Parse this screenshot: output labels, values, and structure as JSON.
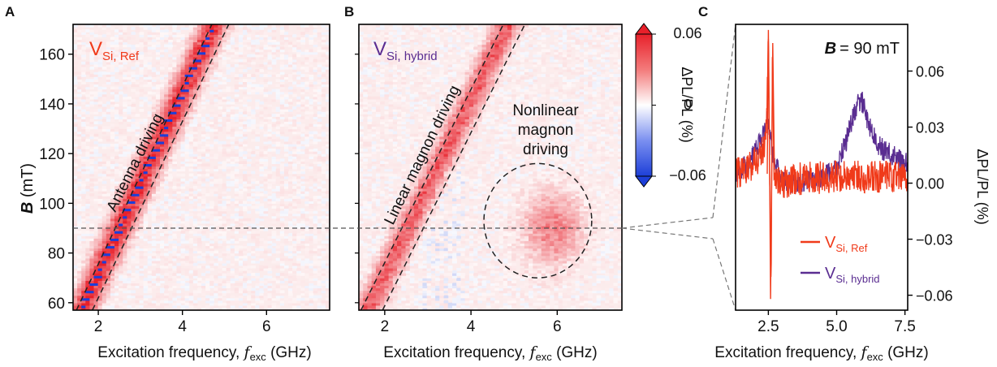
{
  "panels": {
    "A": {
      "letter": "A",
      "label_base": "V",
      "label_sub": "Si, Ref",
      "annotation": "Antenna driving"
    },
    "B": {
      "letter": "B",
      "label_base": "V",
      "label_sub": "Si, hybrid",
      "annotation_linear": "Linear magnon driving",
      "annotation_nonlinear": [
        "Nonlinear",
        "magnon",
        "driving"
      ]
    },
    "C": {
      "letter": "C",
      "field_symbol": "B",
      "field_value": "= 90 mT"
    }
  },
  "axes": {
    "x_label_prefix": "Excitation frequency, ",
    "x_label_var": "f",
    "x_label_sub": "exc",
    "x_label_unit": " (GHz)",
    "y_label_symbol": "B",
    "y_label_unit": " (mT)",
    "c_y_label": "ΔPL/PL (%)"
  },
  "colorbar": {
    "label": "ΔPL/PL (%)",
    "ticks": [
      "0.06",
      "0",
      "−0.06"
    ],
    "min": -0.06,
    "max": 0.06
  },
  "colors": {
    "ref": "#f03a1a",
    "hybrid": "#5a2d91",
    "max": "#e8202a",
    "min": "#1d3fd8",
    "mid": "#ffffff"
  },
  "chart_data": [
    {
      "type": "heatmap",
      "panel": "A",
      "title": "",
      "x_ticks": [
        "2",
        "4",
        "6"
      ],
      "x_tick_values": [
        2,
        4,
        6
      ],
      "xlim": [
        1.4,
        7.5
      ],
      "y_ticks": [
        "60",
        "80",
        "100",
        "120",
        "140",
        "160"
      ],
      "y_tick_values": [
        60,
        80,
        100,
        120,
        140,
        160
      ],
      "ylim": [
        57,
        172
      ],
      "band": {
        "f_at_57mT": 1.6,
        "f_at_172mT": 4.75,
        "half_width_GHz": 0.38,
        "peak_value": 0.06,
        "min_value": -0.06
      },
      "dashed_lines": [
        {
          "from": [
            1.48,
            57
          ],
          "to": [
            4.7,
            172
          ]
        },
        {
          "from": [
            1.86,
            57
          ],
          "to": [
            5.1,
            172
          ]
        }
      ]
    },
    {
      "type": "heatmap",
      "panel": "B",
      "title": "",
      "x_ticks": [
        "2",
        "4",
        "6"
      ],
      "x_tick_values": [
        2,
        4,
        6
      ],
      "xlim": [
        1.4,
        7.5
      ],
      "ylim": [
        57,
        172
      ],
      "band": {
        "f_at_57mT": 1.6,
        "f_at_172mT": 4.85,
        "half_width_GHz": 0.35,
        "peak_value": 0.045
      },
      "nonlinear_region": {
        "center_GHz": 5.9,
        "center_mT": 90,
        "peak_value": 0.035
      },
      "dashed_lines": [
        {
          "from": [
            1.45,
            57
          ],
          "to": [
            4.75,
            172
          ]
        },
        {
          "from": [
            1.95,
            57
          ],
          "to": [
            5.25,
            172
          ]
        }
      ],
      "dashed_ellipse": {
        "center": [
          5.55,
          93
        ],
        "radius_GHz": 1.25,
        "radius_mT": 23
      }
    },
    {
      "type": "line",
      "panel": "C",
      "title": "",
      "x_ticks": [
        "2.5",
        "5.0",
        "7.5"
      ],
      "x_tick_values": [
        2.5,
        5.0,
        7.5
      ],
      "xlim": [
        1.3,
        7.6
      ],
      "y_ticks": [
        "0.06",
        "0.03",
        "0.00",
        "−0.03",
        "−0.06"
      ],
      "y_tick_values": [
        0.06,
        0.03,
        0.0,
        -0.03,
        -0.06
      ],
      "ylim": [
        -0.068,
        0.085
      ],
      "series": [
        {
          "name": "V_Si, Ref",
          "legend_base": "V",
          "legend_sub": "Si, Ref",
          "x": [
            1.3,
            1.8,
            2.2,
            2.4,
            2.45,
            2.5,
            2.55,
            2.6,
            2.65,
            2.7,
            2.8,
            3.0,
            3.5,
            4.5,
            5.5,
            6.5,
            7.6
          ],
          "y": [
            0.005,
            0.008,
            0.015,
            0.02,
            0.04,
            0.08,
            0.0,
            -0.062,
            0.075,
            0.01,
            0.0,
            0.0,
            0.002,
            0.003,
            0.004,
            0.003,
            0.003
          ]
        },
        {
          "name": "V_Si, hybrid",
          "legend_base": "V",
          "legend_sub": "Si, hybrid",
          "x": [
            1.3,
            1.8,
            2.2,
            2.4,
            2.5,
            2.6,
            2.75,
            3.0,
            3.5,
            4.5,
            5.0,
            5.4,
            5.7,
            5.9,
            6.1,
            6.5,
            7.0,
            7.6
          ],
          "y": [
            0.006,
            0.01,
            0.022,
            0.03,
            0.035,
            0.022,
            0.01,
            0.002,
            0.0,
            0.003,
            0.008,
            0.025,
            0.04,
            0.045,
            0.035,
            0.02,
            0.015,
            0.01
          ]
        }
      ]
    }
  ]
}
